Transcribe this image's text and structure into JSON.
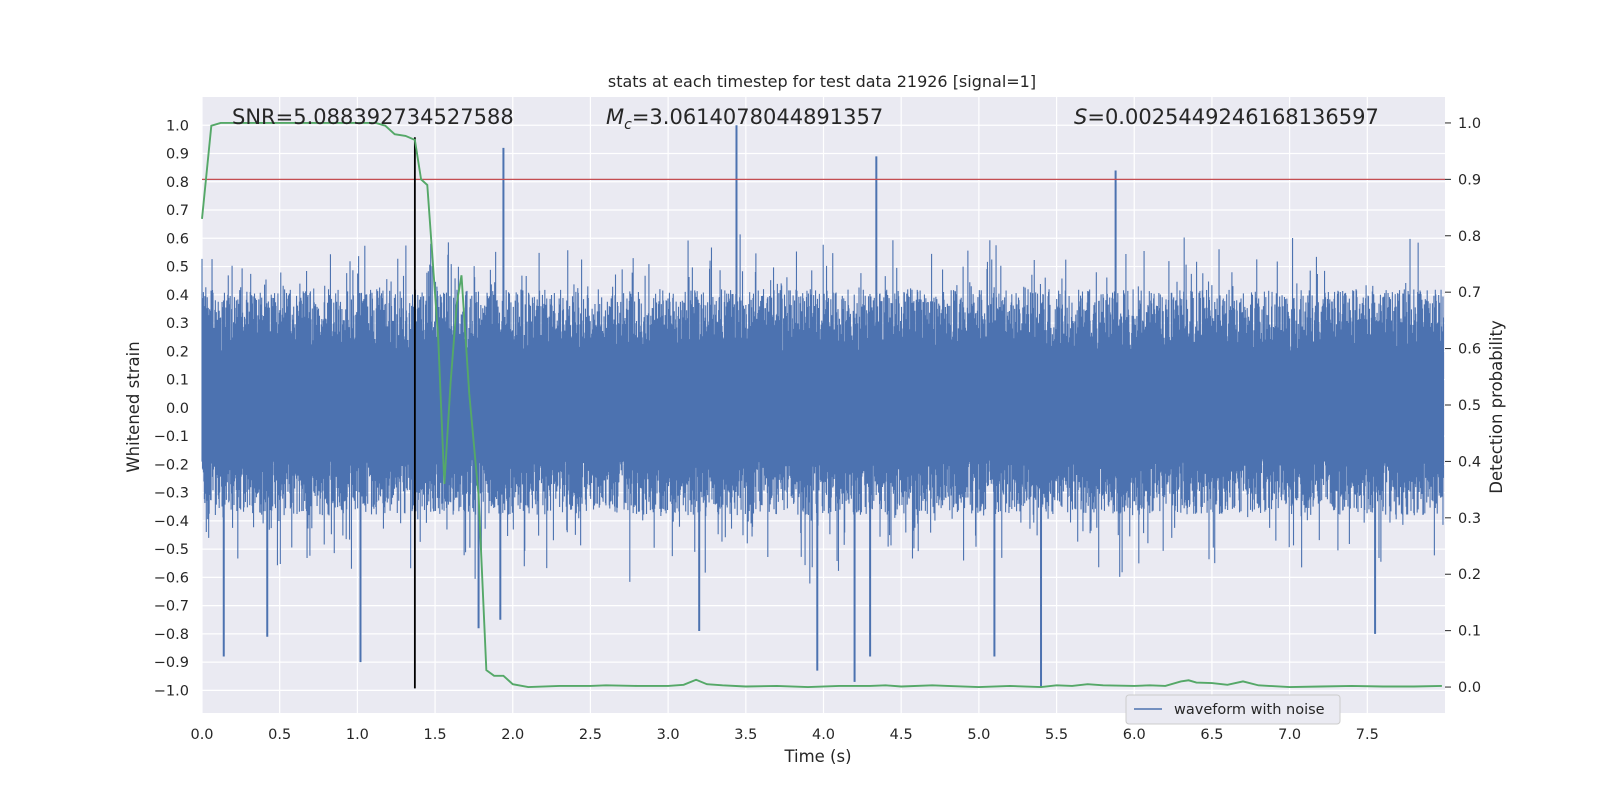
{
  "chart_data": {
    "type": "line",
    "title": "stats at each timestep for test data 21926 [signal=1]",
    "xlabel": "Time (s)",
    "ylabel_left": "Whitened strain",
    "ylabel_right": "Detection probability",
    "xlim": [
      0.0,
      8.0
    ],
    "ylim_left": [
      -1.08,
      1.1
    ],
    "ylim_right": [
      -0.046,
      1.046
    ],
    "x_ticks": [
      0.0,
      0.5,
      1.0,
      1.5,
      2.0,
      2.5,
      3.0,
      3.5,
      4.0,
      4.5,
      5.0,
      5.5,
      6.0,
      6.5,
      7.0,
      7.5
    ],
    "x_tick_labels": [
      "0.0",
      "0.5",
      "1.0",
      "1.5",
      "2.0",
      "2.5",
      "3.0",
      "3.5",
      "4.0",
      "4.5",
      "5.0",
      "5.5",
      "6.0",
      "6.5",
      "7.0",
      "7.5"
    ],
    "y_left_ticks": [
      -1.0,
      -0.9,
      -0.8,
      -0.7,
      -0.6,
      -0.5,
      -0.4,
      -0.3,
      -0.2,
      -0.1,
      0.0,
      0.1,
      0.2,
      0.3,
      0.4,
      0.5,
      0.6,
      0.7,
      0.8,
      0.9,
      1.0
    ],
    "y_left_tick_labels": [
      "−1.0",
      "−0.9",
      "−0.8",
      "−0.7",
      "−0.6",
      "−0.5",
      "−0.4",
      "−0.3",
      "−0.2",
      "−0.1",
      "0.0",
      "0.1",
      "0.2",
      "0.3",
      "0.4",
      "0.5",
      "0.6",
      "0.7",
      "0.8",
      "0.9",
      "1.0"
    ],
    "y_right_ticks": [
      0.0,
      0.1,
      0.2,
      0.3,
      0.4,
      0.5,
      0.6,
      0.7,
      0.8,
      0.9,
      1.0
    ],
    "y_right_tick_labels": [
      "0.0",
      "0.1",
      "0.2",
      "0.3",
      "0.4",
      "0.5",
      "0.6",
      "0.7",
      "0.8",
      "0.9",
      "1.0"
    ],
    "annotations": {
      "snr_text": "SNR=5.088392734527588",
      "mc_symbol": "M",
      "mc_subscript": "c",
      "mc_value": "=3.0614078044891357",
      "s_symbol": "S",
      "s_value": "=0.002544924616813659​7"
    },
    "threshold": {
      "axis": "right",
      "value": 0.9,
      "color": "#c44e52"
    },
    "marker_line": {
      "x": 1.37,
      "color": "#000000"
    },
    "series": [
      {
        "name": "waveform with noise",
        "axis": "left",
        "color": "#4c72b0",
        "style": "dense noise between roughly -0.45 and 0.55 with isolated spikes",
        "spikes": [
          {
            "x": 1.94,
            "y": 0.92
          },
          {
            "x": 3.44,
            "y": 1.0
          },
          {
            "x": 4.34,
            "y": 0.89
          },
          {
            "x": 5.88,
            "y": 0.84
          },
          {
            "x": 0.14,
            "y": -0.88
          },
          {
            "x": 1.02,
            "y": -0.9
          },
          {
            "x": 3.96,
            "y": -0.93
          },
          {
            "x": 4.2,
            "y": -0.97
          },
          {
            "x": 5.4,
            "y": -0.99
          },
          {
            "x": 5.1,
            "y": -0.88
          },
          {
            "x": 7.55,
            "y": -0.8
          },
          {
            "x": 0.42,
            "y": -0.81
          },
          {
            "x": 1.78,
            "y": -0.78
          },
          {
            "x": 1.92,
            "y": -0.75
          },
          {
            "x": 3.2,
            "y": -0.79
          },
          {
            "x": 4.3,
            "y": -0.88
          }
        ]
      },
      {
        "name": "detection probability",
        "axis": "right",
        "color": "#55a868",
        "x": [
          0.0,
          0.06,
          0.12,
          0.2,
          0.4,
          0.6,
          0.8,
          1.0,
          1.12,
          1.18,
          1.24,
          1.31,
          1.37,
          1.41,
          1.45,
          1.52,
          1.56,
          1.6,
          1.64,
          1.67,
          1.72,
          1.78,
          1.83,
          1.88,
          1.94,
          2.0,
          2.1,
          2.3,
          2.5,
          2.6,
          2.8,
          3.0,
          3.1,
          3.18,
          3.25,
          3.35,
          3.5,
          3.7,
          3.9,
          4.1,
          4.3,
          4.4,
          4.5,
          4.7,
          4.8,
          5.0,
          5.2,
          5.4,
          5.5,
          5.6,
          5.7,
          5.8,
          6.0,
          6.1,
          6.2,
          6.3,
          6.35,
          6.4,
          6.5,
          6.6,
          6.7,
          6.8,
          7.0,
          7.2,
          7.4,
          7.6,
          7.8,
          7.98
        ],
        "y": [
          0.83,
          0.995,
          1.0,
          1.0,
          1.0,
          1.0,
          1.0,
          1.0,
          1.0,
          0.995,
          0.98,
          0.977,
          0.97,
          0.9,
          0.89,
          0.62,
          0.36,
          0.54,
          0.68,
          0.73,
          0.52,
          0.34,
          0.03,
          0.02,
          0.02,
          0.005,
          0.0,
          0.002,
          0.002,
          0.003,
          0.002,
          0.002,
          0.004,
          0.013,
          0.005,
          0.003,
          0.001,
          0.002,
          0.0,
          0.002,
          0.002,
          0.003,
          0.001,
          0.003,
          0.002,
          0.0,
          0.002,
          0.0,
          0.003,
          0.002,
          0.005,
          0.003,
          0.002,
          0.003,
          0.002,
          0.01,
          0.012,
          0.008,
          0.007,
          0.004,
          0.01,
          0.003,
          0.0,
          0.001,
          0.002,
          0.001,
          0.001,
          0.002
        ]
      }
    ],
    "legend": {
      "entries": [
        "waveform with noise"
      ],
      "placement": "bottom-right"
    }
  }
}
